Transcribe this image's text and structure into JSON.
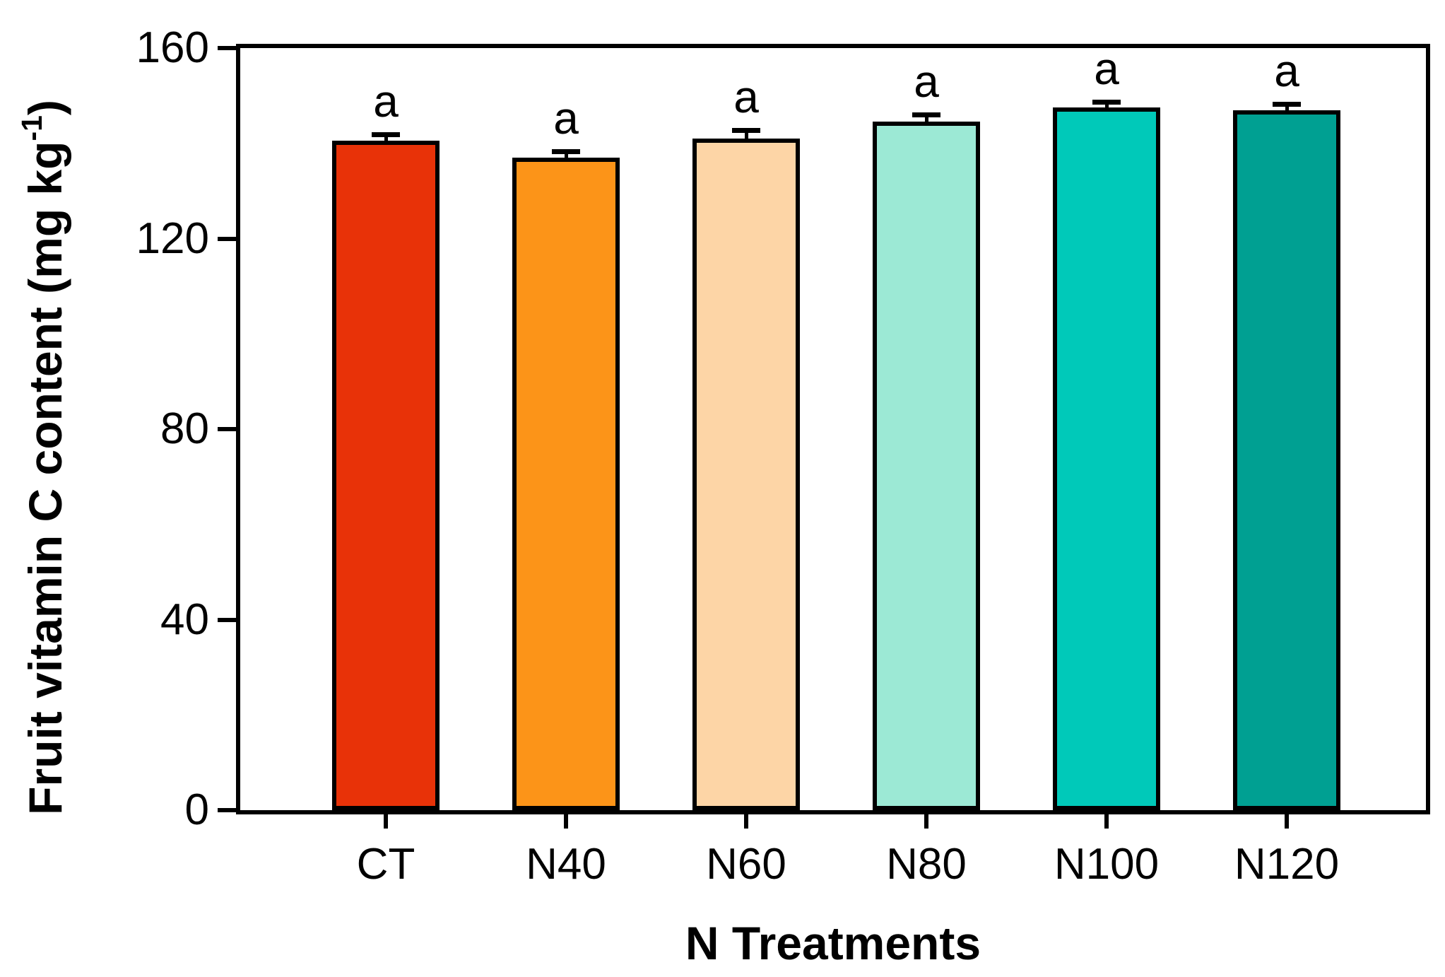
{
  "chart_data": {
    "type": "bar",
    "title": "",
    "xlabel": "N Treatments",
    "ylabel": "Fruit vitamin C content (mg kg-1)",
    "ylabel_parts": {
      "main": "Fruit vitamin C content (mg kg",
      "sup": "-1",
      "end": ")"
    },
    "categories": [
      "CT",
      "N40",
      "N60",
      "N80",
      "N100",
      "N120"
    ],
    "values": [
      140.5,
      137,
      141,
      144.5,
      147.5,
      147
    ],
    "errors": [
      0.8,
      0.8,
      1.2,
      1.0,
      0.7,
      0.7
    ],
    "sig_labels": [
      "a",
      "a",
      "a",
      "a",
      "a",
      "a"
    ],
    "bar_colors": [
      "#E83208",
      "#FC9418",
      "#FDD5A6",
      "#9CE9D5",
      "#00C9B9",
      "#00A092"
    ],
    "bar_border_color": "#000000",
    "yticks": [
      0,
      40,
      80,
      120,
      160
    ],
    "ylim": [
      0,
      160
    ],
    "grid": false,
    "legend": null,
    "background": "#FFFFFF"
  }
}
